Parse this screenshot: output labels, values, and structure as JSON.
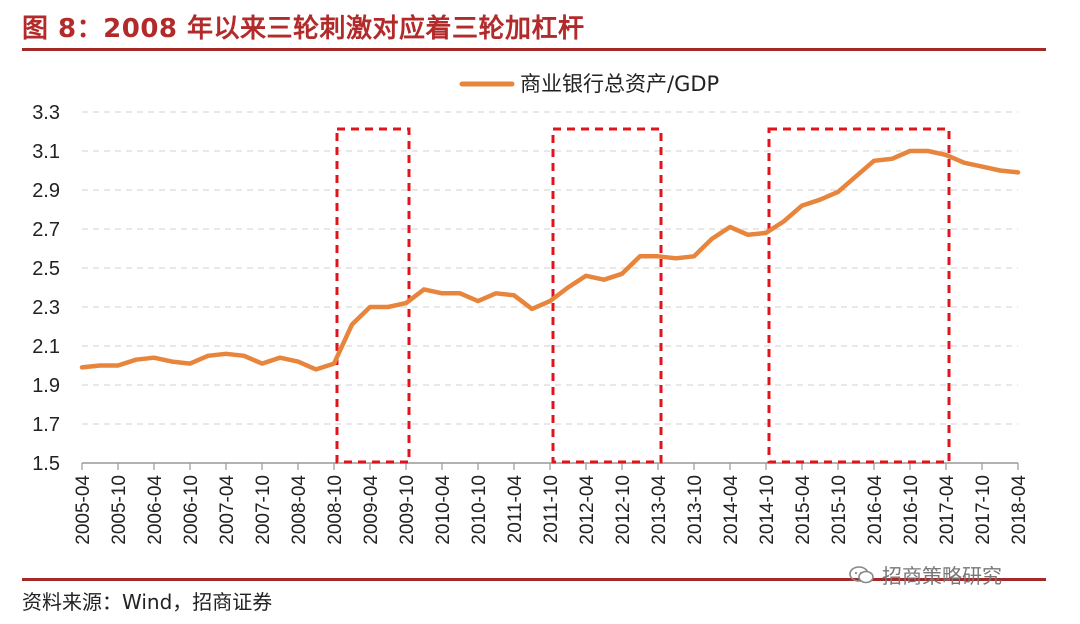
{
  "figure": {
    "title": "图 8：2008 年以来三轮刺激对应着三轮加杠杆",
    "source": "资料来源：Wind，招商证券",
    "watermark": "招商策略研究",
    "watermark_icon": "wechat-icon"
  },
  "colors": {
    "title": "#b22a2a",
    "rule": "#a42a2a",
    "line": "#e8853c",
    "highlight_box": "#e0141e",
    "grid": "#d9d9d9"
  },
  "chart_data": {
    "type": "line",
    "title": "",
    "xlabel": "",
    "ylabel": "",
    "ylim": [
      1.5,
      3.3
    ],
    "yticks": [
      "1.5",
      "1.7",
      "1.9",
      "2.1",
      "2.3",
      "2.5",
      "2.7",
      "2.9",
      "3.1",
      "3.3"
    ],
    "grid": "horizontal dashed",
    "legend_position": "top-center",
    "xticks": [
      "2005-04",
      "2005-10",
      "2006-04",
      "2006-10",
      "2007-04",
      "2007-10",
      "2008-04",
      "2008-10",
      "2009-04",
      "2009-10",
      "2010-04",
      "2010-10",
      "2011-04",
      "2011-10",
      "2012-04",
      "2012-10",
      "2013-04",
      "2013-10",
      "2014-04",
      "2014-10",
      "2015-04",
      "2015-10",
      "2016-04",
      "2016-10",
      "2017-04",
      "2017-10",
      "2018-04"
    ],
    "x": [
      "2005-04",
      "2005-07",
      "2005-10",
      "2006-01",
      "2006-04",
      "2006-07",
      "2006-10",
      "2007-01",
      "2007-04",
      "2007-07",
      "2007-10",
      "2008-01",
      "2008-04",
      "2008-07",
      "2008-10",
      "2009-01",
      "2009-04",
      "2009-07",
      "2009-10",
      "2010-01",
      "2010-04",
      "2010-07",
      "2010-10",
      "2011-01",
      "2011-04",
      "2011-07",
      "2011-10",
      "2012-01",
      "2012-04",
      "2012-07",
      "2012-10",
      "2013-01",
      "2013-04",
      "2013-07",
      "2013-10",
      "2014-01",
      "2014-04",
      "2014-07",
      "2014-10",
      "2015-01",
      "2015-04",
      "2015-07",
      "2015-10",
      "2016-01",
      "2016-04",
      "2016-07",
      "2016-10",
      "2017-01",
      "2017-04",
      "2017-07",
      "2017-10",
      "2018-01",
      "2018-04"
    ],
    "series": [
      {
        "name": "商业银行总资产/GDP",
        "values": [
          1.99,
          2.0,
          2.0,
          2.03,
          2.04,
          2.02,
          2.01,
          2.05,
          2.06,
          2.05,
          2.01,
          2.04,
          2.02,
          1.98,
          2.01,
          2.21,
          2.3,
          2.3,
          2.32,
          2.39,
          2.37,
          2.37,
          2.33,
          2.37,
          2.36,
          2.29,
          2.33,
          2.4,
          2.46,
          2.44,
          2.47,
          2.56,
          2.56,
          2.55,
          2.56,
          2.65,
          2.71,
          2.67,
          2.68,
          2.74,
          2.82,
          2.85,
          2.89,
          2.97,
          3.05,
          3.06,
          3.1,
          3.1,
          3.08,
          3.04,
          3.02,
          3.0,
          2.99
        ]
      }
    ],
    "highlight_periods": [
      {
        "from": "2008-10",
        "to": "2009-10",
        "style": "red dashed box"
      },
      {
        "from": "2011-10",
        "to": "2013-04",
        "style": "red dashed box"
      },
      {
        "from": "2014-10",
        "to": "2017-04",
        "style": "red dashed box"
      }
    ]
  }
}
